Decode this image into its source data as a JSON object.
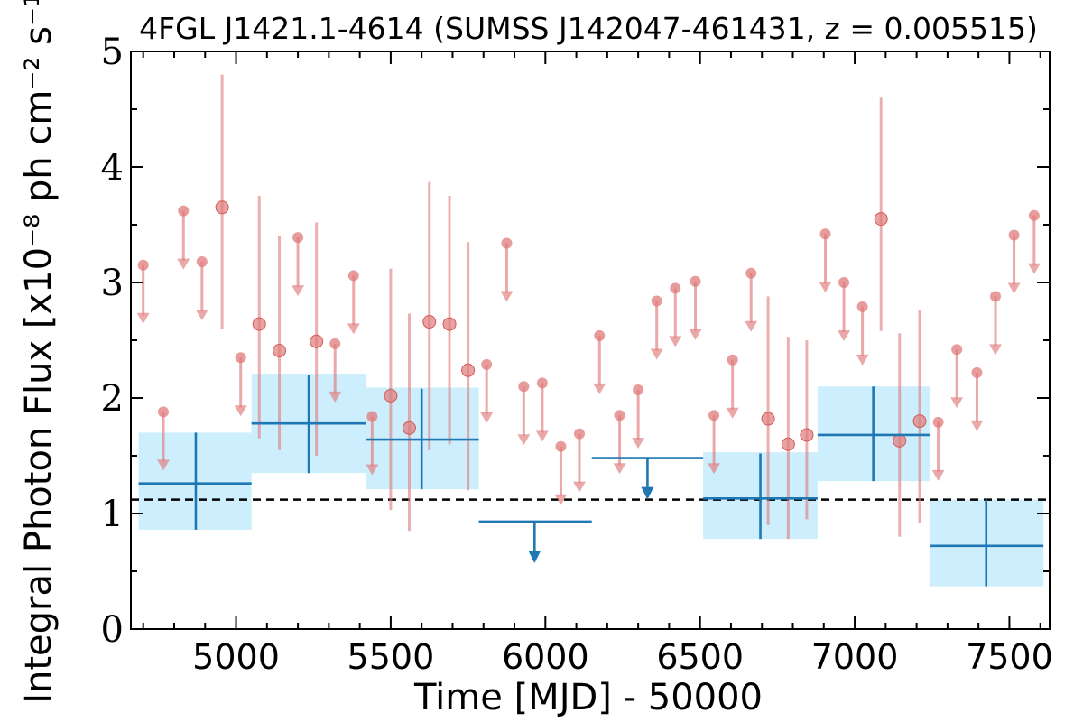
{
  "chart_data": {
    "type": "scatter",
    "title": "4FGL J1421.1-4614 (SUMSS J142047-461431, z = 0.005515)",
    "xlabel": "Time [MJD] - 50000",
    "ylabel": "Integral Photon Flux [x10⁻⁸ ph cm⁻² s⁻¹]",
    "xlim": [
      4660,
      7630
    ],
    "ylim": [
      0,
      5
    ],
    "x_ticks": [
      5000,
      5500,
      6000,
      6500,
      7000,
      7500
    ],
    "x_tick_labels": [
      "5000",
      "5500",
      "6000",
      "6500",
      "7000",
      "7500"
    ],
    "y_ticks": [
      0,
      1,
      2,
      3,
      4,
      5
    ],
    "y_tick_labels": [
      "0",
      "1",
      "2",
      "3",
      "4",
      "5"
    ],
    "reference_level": 1.12,
    "colors": {
      "short_bins": "#e07a7a",
      "long_bins": "#1f77b4",
      "long_bin_band": "#cdeefc",
      "reference_line": "#000000"
    },
    "short_bins_detections": [
      {
        "x": 4955,
        "y": 3.65,
        "ylo": 2.6,
        "yhi": 4.8
      },
      {
        "x": 5075,
        "y": 2.64,
        "ylo": 1.65,
        "yhi": 3.75
      },
      {
        "x": 5140,
        "y": 2.41,
        "ylo": 1.55,
        "yhi": 3.4
      },
      {
        "x": 5260,
        "y": 2.49,
        "ylo": 1.5,
        "yhi": 3.52
      },
      {
        "x": 5500,
        "y": 2.02,
        "ylo": 1.03,
        "yhi": 3.12
      },
      {
        "x": 5560,
        "y": 1.74,
        "ylo": 0.85,
        "yhi": 2.73
      },
      {
        "x": 5625,
        "y": 2.66,
        "ylo": 1.55,
        "yhi": 3.87
      },
      {
        "x": 5690,
        "y": 2.64,
        "ylo": 1.6,
        "yhi": 3.75
      },
      {
        "x": 5750,
        "y": 2.24,
        "ylo": 1.2,
        "yhi": 3.35
      },
      {
        "x": 6720,
        "y": 1.82,
        "ylo": 0.9,
        "yhi": 2.88
      },
      {
        "x": 6785,
        "y": 1.6,
        "ylo": 0.78,
        "yhi": 2.53
      },
      {
        "x": 6845,
        "y": 1.68,
        "ylo": 0.95,
        "yhi": 2.5
      },
      {
        "x": 7085,
        "y": 3.55,
        "ylo": 2.58,
        "yhi": 4.6
      },
      {
        "x": 7145,
        "y": 1.63,
        "ylo": 0.8,
        "yhi": 2.56
      },
      {
        "x": 7210,
        "y": 1.8,
        "ylo": 0.92,
        "yhi": 2.76
      }
    ],
    "short_bins_upper_limits": [
      {
        "x": 4700,
        "y": 3.15
      },
      {
        "x": 4765,
        "y": 1.88
      },
      {
        "x": 4830,
        "y": 3.62
      },
      {
        "x": 4890,
        "y": 3.18
      },
      {
        "x": 5015,
        "y": 2.35
      },
      {
        "x": 5200,
        "y": 3.39
      },
      {
        "x": 5320,
        "y": 2.47
      },
      {
        "x": 5380,
        "y": 3.06
      },
      {
        "x": 5440,
        "y": 1.84
      },
      {
        "x": 5810,
        "y": 2.29
      },
      {
        "x": 5875,
        "y": 3.34
      },
      {
        "x": 5930,
        "y": 2.1
      },
      {
        "x": 5990,
        "y": 2.13
      },
      {
        "x": 6050,
        "y": 1.58
      },
      {
        "x": 6110,
        "y": 1.69
      },
      {
        "x": 6175,
        "y": 2.54
      },
      {
        "x": 6240,
        "y": 1.85
      },
      {
        "x": 6300,
        "y": 2.07
      },
      {
        "x": 6360,
        "y": 2.84
      },
      {
        "x": 6420,
        "y": 2.95
      },
      {
        "x": 6485,
        "y": 3.01
      },
      {
        "x": 6545,
        "y": 1.85
      },
      {
        "x": 6605,
        "y": 2.33
      },
      {
        "x": 6665,
        "y": 3.08
      },
      {
        "x": 6905,
        "y": 3.42
      },
      {
        "x": 6965,
        "y": 3.0
      },
      {
        "x": 7025,
        "y": 2.79
      },
      {
        "x": 7270,
        "y": 1.79
      },
      {
        "x": 7330,
        "y": 2.42
      },
      {
        "x": 7395,
        "y": 2.22
      },
      {
        "x": 7455,
        "y": 2.88
      },
      {
        "x": 7515,
        "y": 3.41
      },
      {
        "x": 7580,
        "y": 3.58
      }
    ],
    "long_bins_detections": [
      {
        "x": 4870,
        "x0": 4685,
        "x1": 5050,
        "y": 1.26,
        "ylo": 0.86,
        "yhi": 1.7,
        "band_lo": 0.86,
        "band_hi": 1.7
      },
      {
        "x": 5235,
        "x0": 5050,
        "x1": 5420,
        "y": 1.78,
        "ylo": 1.35,
        "yhi": 2.2,
        "band_lo": 1.35,
        "band_hi": 2.21
      },
      {
        "x": 5600,
        "x0": 5420,
        "x1": 5785,
        "y": 1.64,
        "ylo": 1.21,
        "yhi": 2.08,
        "band_lo": 1.21,
        "band_hi": 2.09
      },
      {
        "x": 6695,
        "x0": 6510,
        "x1": 6880,
        "y": 1.13,
        "ylo": 0.78,
        "yhi": 1.52,
        "band_lo": 0.78,
        "band_hi": 1.53
      },
      {
        "x": 7060,
        "x0": 6880,
        "x1": 7245,
        "y": 1.68,
        "ylo": 1.28,
        "yhi": 2.1,
        "band_lo": 1.28,
        "band_hi": 2.1
      },
      {
        "x": 7425,
        "x0": 7245,
        "x1": 7610,
        "y": 0.72,
        "ylo": 0.37,
        "yhi": 1.12,
        "band_lo": 0.37,
        "band_hi": 1.12
      }
    ],
    "long_bins_upper_limits": [
      {
        "x": 5965,
        "x0": 5785,
        "x1": 6150,
        "y": 0.93
      },
      {
        "x": 6330,
        "x0": 6150,
        "x1": 6510,
        "y": 1.48
      }
    ]
  }
}
